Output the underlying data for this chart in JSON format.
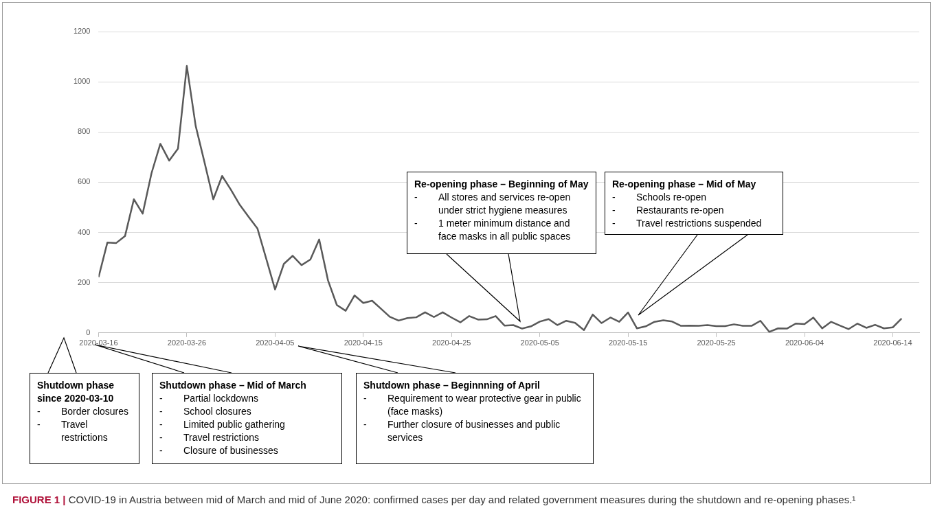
{
  "chart_data": {
    "type": "line",
    "x": [
      "2020-03-16",
      "2020-03-17",
      "2020-03-18",
      "2020-03-19",
      "2020-03-20",
      "2020-03-21",
      "2020-03-22",
      "2020-03-23",
      "2020-03-24",
      "2020-03-25",
      "2020-03-26",
      "2020-03-27",
      "2020-03-28",
      "2020-03-29",
      "2020-03-30",
      "2020-03-31",
      "2020-04-01",
      "2020-04-02",
      "2020-04-03",
      "2020-04-04",
      "2020-04-05",
      "2020-04-06",
      "2020-04-07",
      "2020-04-08",
      "2020-04-09",
      "2020-04-10",
      "2020-04-11",
      "2020-04-12",
      "2020-04-13",
      "2020-04-14",
      "2020-04-15",
      "2020-04-16",
      "2020-04-17",
      "2020-04-18",
      "2020-04-19",
      "2020-04-20",
      "2020-04-21",
      "2020-04-22",
      "2020-04-23",
      "2020-04-24",
      "2020-04-25",
      "2020-04-26",
      "2020-04-27",
      "2020-04-28",
      "2020-04-29",
      "2020-04-30",
      "2020-05-01",
      "2020-05-02",
      "2020-05-03",
      "2020-05-04",
      "2020-05-05",
      "2020-05-06",
      "2020-05-07",
      "2020-05-08",
      "2020-05-09",
      "2020-05-10",
      "2020-05-11",
      "2020-05-12",
      "2020-05-13",
      "2020-05-14",
      "2020-05-15",
      "2020-05-16",
      "2020-05-17",
      "2020-05-18",
      "2020-05-19",
      "2020-05-20",
      "2020-05-21",
      "2020-05-22",
      "2020-05-23",
      "2020-05-24",
      "2020-05-25",
      "2020-05-26",
      "2020-05-27",
      "2020-05-28",
      "2020-05-29",
      "2020-05-30",
      "2020-05-31",
      "2020-06-01",
      "2020-06-02",
      "2020-06-03",
      "2020-06-04",
      "2020-06-05",
      "2020-06-06",
      "2020-06-07",
      "2020-06-08",
      "2020-06-09",
      "2020-06-10",
      "2020-06-11",
      "2020-06-12",
      "2020-06-13",
      "2020-06-14",
      "2020-06-15"
    ],
    "series": [
      {
        "color": "#595959",
        "values": [
          222,
          360,
          358,
          386,
          532,
          475,
          636,
          753,
          686,
          734,
          1063,
          825,
          680,
          532,
          625,
          570,
          510,
          462,
          416,
          295,
          173,
          275,
          307,
          270,
          292,
          372,
          209,
          111,
          88,
          149,
          119,
          128,
          96,
          64,
          49,
          59,
          62,
          82,
          63,
          82,
          61,
          42,
          67,
          53,
          54,
          67,
          29,
          31,
          17,
          26,
          45,
          55,
          31,
          48,
          40,
          11,
          73,
          39,
          61,
          44,
          81,
          18,
          26,
          44,
          50,
          45,
          28,
          29,
          28,
          31,
          27,
          27,
          34,
          28,
          28,
          48,
          4,
          18,
          17,
          37,
          35,
          61,
          18,
          44,
          29,
          15,
          37,
          20,
          32,
          18,
          22,
          57
        ]
      }
    ],
    "xlim": [
      "2020-03-16",
      "2020-06-17"
    ],
    "xticks": [
      "2020-03-16",
      "2020-03-26",
      "2020-04-05",
      "2020-04-15",
      "2020-04-25",
      "2020-05-05",
      "2020-05-15",
      "2020-05-25",
      "2020-06-04",
      "2020-06-14"
    ],
    "ylim": [
      0,
      1200
    ],
    "yticks": [
      0,
      200,
      400,
      600,
      800,
      1000,
      1200
    ],
    "grid": "y",
    "marker": "none",
    "line_style": "solid",
    "legend": false,
    "annotations": [
      "Shutdown phase since 2020-03-10\n- Border closures\n- Travel restrictions",
      "Shutdown phase – Mid of March\n- Partial lockdowns\n- School closures\n- Limited public gathering\n- Travel restrictions\n- Closure of businesses",
      "Shutdown phase – Beginnning of April\n- Requirement to wear protective gear in public (face masks)\n- Further closure of businesses and public services",
      "Re-opening phase – Beginning of May\n- All stores and services re-open under strict hygiene measures\n- 1 meter minimum distance and face masks in all public spaces",
      "Re-opening phase – Mid of May\n- Schools re-open\n- Restaurants re-open\n- Travel restrictions suspended",
      "FIGURE 1 | COVID-19 in Austria between mid of March and mid of June 2020: confirmed cases per day and related government measures during the shutdown and re-opening phases.¹"
    ]
  }
}
